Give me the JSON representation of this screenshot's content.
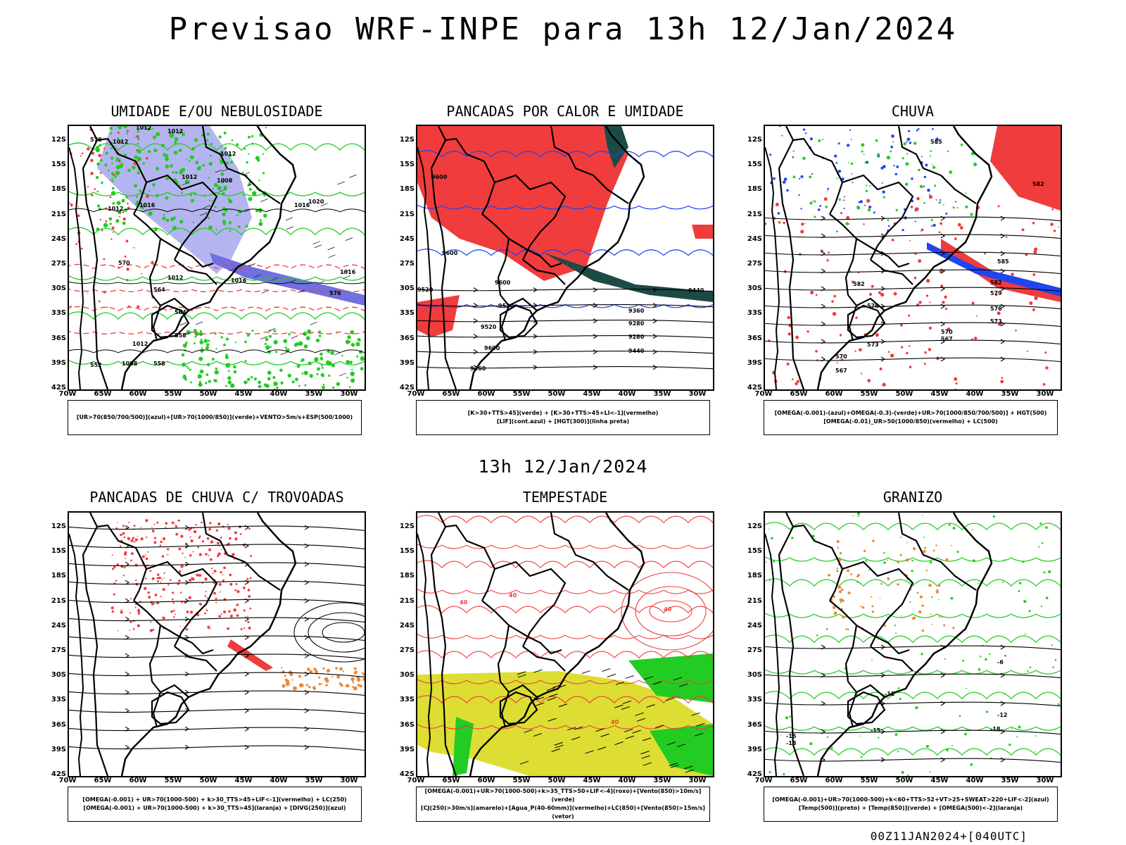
{
  "title": "Previsao WRF-INPE  para 13h 12/Jan/2024",
  "subtitle": "13h 12/Jan/2024",
  "footer": "00Z11JAN2024+[040UTC]",
  "lat_labels": [
    "12S",
    "15S",
    "18S",
    "21S",
    "24S",
    "27S",
    "30S",
    "33S",
    "36S",
    "39S",
    "42S"
  ],
  "lon_labels": [
    "70W",
    "65W",
    "60W",
    "55W",
    "50W",
    "45W",
    "40W",
    "35W",
    "30W"
  ],
  "colors": {
    "red": "#f03c3c",
    "green": "#22cc22",
    "blue": "#2244ee",
    "lavender": "#b4b4f0",
    "yellow": "#dddd33",
    "orange": "#ee8833",
    "darkteal": "#1e4a46"
  },
  "panels": [
    {
      "title": "UMIDADE E/OU NEBULOSIDADE",
      "legend": [
        "[UR>70(850/700/500)](azul)+[UR>70(1000/850)](verde)+VENTO>5m/s+ESP(500/1000)"
      ],
      "contour_labels": [
        "1012",
        "1012",
        "1012",
        "1012",
        "1012",
        "1008",
        "1012",
        "1016",
        "1016",
        "1016",
        "1012",
        "1016",
        "1020",
        "1012",
        "1008",
        "576",
        "570",
        "570",
        "564",
        "564",
        "558",
        "552",
        "558"
      ]
    },
    {
      "title": "PANCADAS POR CALOR E UMIDADE",
      "legend": [
        "[K>30+TTS>45](verde) + [K>30+TTS>45+LI<-1](vermelho)",
        "[LIF](cont.azul) + [HGT(300)](linha preta)"
      ],
      "contour_labels": [
        "9600",
        "9600",
        "9520",
        "9600",
        "9520",
        "9440",
        "9360",
        "9280",
        "9280",
        "9440",
        "9360",
        "9520",
        "9600"
      ]
    },
    {
      "title": "CHUVA",
      "legend": [
        "[OMEGA(-0.001)-(azul)+OMEGA(-0.3)-(verde)+UR>70(1000/850/700/500)] + HGT(500)",
        "[OMEGA(-0.01)_UR>50(1000/850)(vermelho) + LC(500)"
      ],
      "contour_labels": [
        "585",
        "585",
        "582",
        "579",
        "576",
        "573",
        "570",
        "567",
        "582",
        "582",
        "576",
        "573",
        "570",
        "567"
      ]
    },
    {
      "title": "PANCADAS DE CHUVA C/ TROVOADAS",
      "legend": [
        "[OMEGA(-0.001) + UR>70(1000-500) + k>30_TTS>45+LIF<-1](vermelho) + LC(250)",
        "[OMEGA(-0.001) + UR>70(1000-500) + k>30_TTS>45](laranja) + [DIVG(250)](azul)"
      ],
      "contour_labels": []
    },
    {
      "title": "TEMPESTADE",
      "legend": [
        "[OMEGA(-0.001)+UR>70(1000-500)+k>35_TTS>50+LIF<-4](roxo)+[Vento(850)>10m/s](verde)",
        "[CJ(250)>30m/s](amarelo)+[Agua_P(40-60mm)](vermelho)+LC(850)+[Vento(850)>15m/s](vetor)"
      ],
      "contour_labels": [
        "40",
        "40",
        "40",
        "40"
      ]
    },
    {
      "title": "GRANIZO",
      "legend": [
        "[OMEGA(-0.001)+UR>70(1000-500)+k<60+TTS>52+VT>25+SWEAT>220+LIF<-2](azul)",
        "[Temp(500)](preto) + [Temp(850)](verde) + [OMEGA(500)<-2](laranja)"
      ],
      "contour_labels": [
        "-6",
        "-12",
        "-12",
        "-15",
        "-15",
        "-18",
        "-18"
      ]
    }
  ]
}
